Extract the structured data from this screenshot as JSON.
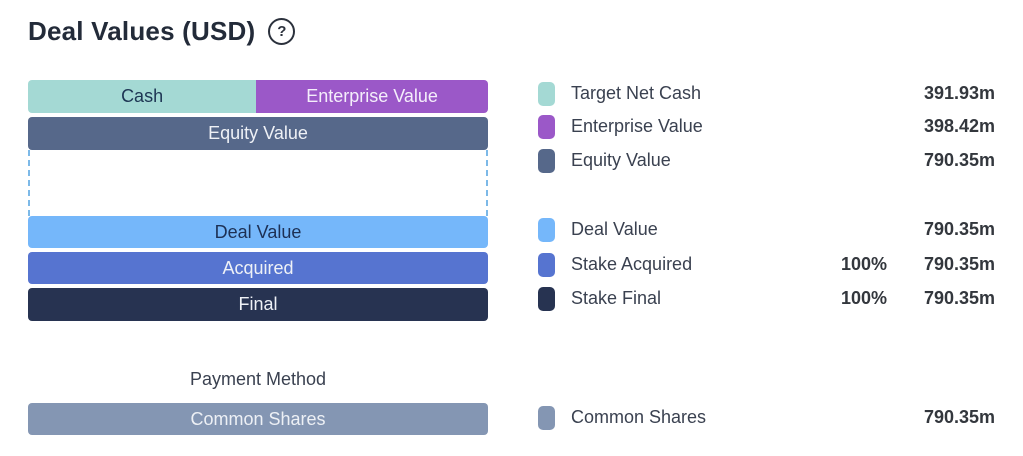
{
  "title": "Deal Values (USD)",
  "help_icon": "?",
  "payment_method_heading": "Payment Method",
  "bars": {
    "cash": {
      "label": "Cash",
      "color": "#a4d9d4"
    },
    "enterprise": {
      "label": "Enterprise Value",
      "color": "#9b58c8"
    },
    "equity": {
      "label": "Equity Value",
      "color": "#56688a"
    },
    "deal": {
      "label": "Deal Value",
      "color": "#75b7fa"
    },
    "acquired": {
      "label": "Acquired",
      "color": "#5674d0"
    },
    "final": {
      "label": "Final",
      "color": "#273351"
    },
    "common": {
      "label": "Common Shares",
      "color": "#8496b3"
    }
  },
  "legend": {
    "group1": [
      {
        "label": "Target Net Cash",
        "pct": "",
        "value": "391.93m",
        "color": "#a4d9d4"
      },
      {
        "label": "Enterprise Value",
        "pct": "",
        "value": "398.42m",
        "color": "#9b58c8"
      },
      {
        "label": "Equity Value",
        "pct": "",
        "value": "790.35m",
        "color": "#56688a"
      }
    ],
    "group2": [
      {
        "label": "Deal Value",
        "pct": "",
        "value": "790.35m",
        "color": "#75b7fa"
      },
      {
        "label": "Stake Acquired",
        "pct": "100%",
        "value": "790.35m",
        "color": "#5674d0"
      },
      {
        "label": "Stake Final",
        "pct": "100%",
        "value": "790.35m",
        "color": "#273351"
      }
    ],
    "group3": [
      {
        "label": "Common Shares",
        "pct": "",
        "value": "790.35m",
        "color": "#8496b3"
      }
    ]
  },
  "colors": {
    "dashed_connector": "#7cb9e8",
    "title_text": "#232b39",
    "label_text": "#3a4150",
    "value_text": "#33373d"
  },
  "chart_data": {
    "type": "bar",
    "subtype": "horizontal-stacked-deal-structure",
    "title": "Deal Values (USD)",
    "unit": "USD millions",
    "legend_position": "right",
    "rows": [
      {
        "name": "enterprise-composition",
        "segments": [
          {
            "label": "Cash",
            "legend_label": "Target Net Cash",
            "value_m": 391.93,
            "color": "#a4d9d4"
          },
          {
            "label": "Enterprise Value",
            "legend_label": "Enterprise Value",
            "value_m": 398.42,
            "color": "#9b58c8"
          }
        ]
      },
      {
        "name": "equity-value",
        "segments": [
          {
            "label": "Equity Value",
            "legend_label": "Equity Value",
            "value_m": 790.35,
            "color": "#56688a"
          }
        ]
      },
      {
        "name": "deal-value",
        "segments": [
          {
            "label": "Deal Value",
            "legend_label": "Deal Value",
            "value_m": 790.35,
            "color": "#75b7fa"
          }
        ]
      },
      {
        "name": "stake-acquired",
        "segments": [
          {
            "label": "Acquired",
            "legend_label": "Stake Acquired",
            "pct": "100%",
            "value_m": 790.35,
            "color": "#5674d0"
          }
        ]
      },
      {
        "name": "stake-final",
        "segments": [
          {
            "label": "Final",
            "legend_label": "Stake Final",
            "pct": "100%",
            "value_m": 790.35,
            "color": "#273351"
          }
        ]
      },
      {
        "name": "payment-method",
        "heading": "Payment Method",
        "segments": [
          {
            "label": "Common Shares",
            "legend_label": "Common Shares",
            "value_m": 790.35,
            "color": "#8496b3"
          }
        ]
      }
    ]
  }
}
